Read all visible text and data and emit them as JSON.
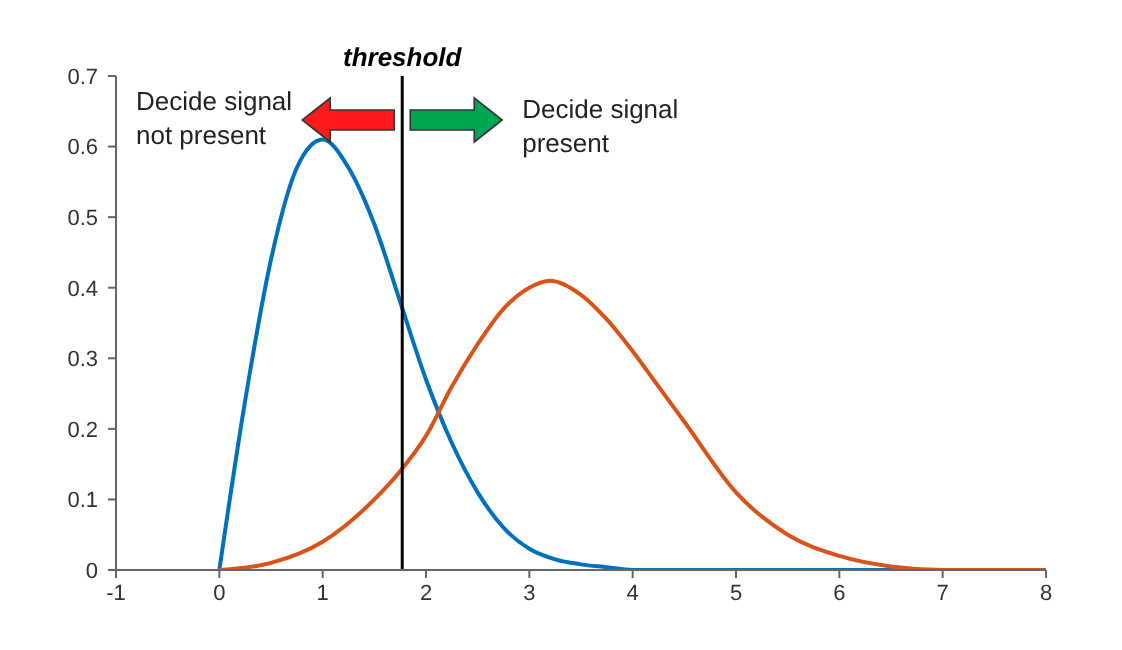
{
  "chart_data": {
    "type": "line",
    "xlim": [
      -1,
      8
    ],
    "xticks": [
      -1,
      0,
      1,
      2,
      3,
      4,
      5,
      6,
      7,
      8
    ],
    "ylim": [
      0,
      0.7
    ],
    "yticks": [
      0,
      0.1,
      0.2,
      0.3,
      0.4,
      0.5,
      0.6,
      0.7
    ],
    "grid": false,
    "legend": false,
    "marker": "none",
    "line_style": "solid",
    "series": [
      {
        "color": "#0072bd",
        "x": [
          0,
          0.25,
          0.5,
          0.75,
          1,
          1.25,
          1.5,
          1.75,
          2,
          2.25,
          2.5,
          2.75,
          3,
          3.25,
          3.5,
          3.75,
          4,
          5,
          6,
          7,
          8
        ],
        "values": [
          0,
          0.24,
          0.44,
          0.57,
          0.61,
          0.57,
          0.49,
          0.38,
          0.27,
          0.18,
          0.11,
          0.06,
          0.03,
          0.015,
          0.008,
          0.004,
          0,
          0,
          0,
          0,
          0
        ]
      },
      {
        "color": "#d95319",
        "x": [
          0,
          0.5,
          1,
          1.5,
          1.75,
          2,
          2.25,
          2.5,
          2.75,
          3,
          3.2,
          3.5,
          3.75,
          4,
          4.25,
          4.5,
          5,
          5.5,
          6,
          6.5,
          7,
          8
        ],
        "values": [
          0,
          0.01,
          0.04,
          0.1,
          0.14,
          0.19,
          0.26,
          0.32,
          0.37,
          0.4,
          0.41,
          0.39,
          0.355,
          0.31,
          0.26,
          0.21,
          0.11,
          0.05,
          0.02,
          0.005,
          0,
          0
        ]
      }
    ],
    "ref_lines": [
      {
        "axis": "x",
        "value": 1.77,
        "label": "threshold",
        "color": "#000000"
      }
    ],
    "annotations": [
      "Decide signal not present",
      "Decide signal present"
    ]
  }
}
